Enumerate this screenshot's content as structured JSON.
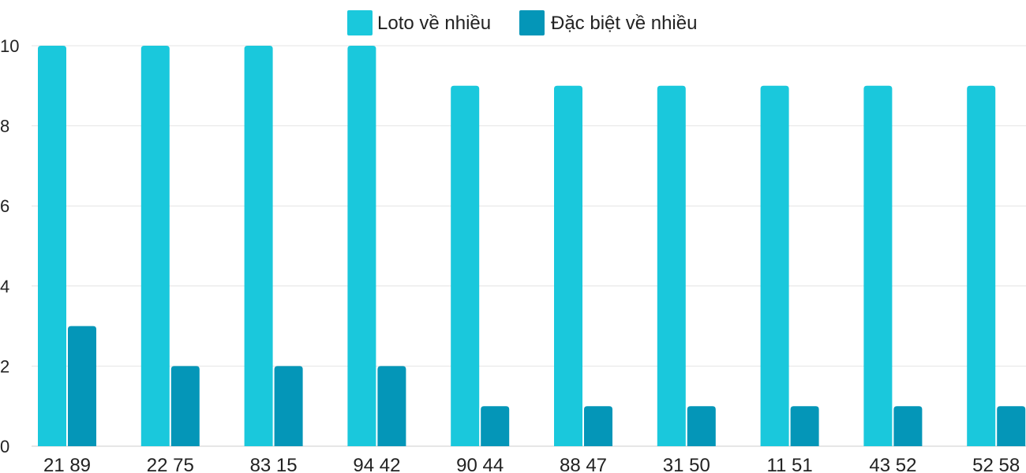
{
  "chart_data": {
    "type": "bar",
    "categories": [
      "21 89",
      "22 75",
      "83 15",
      "94 42",
      "90 44",
      "88 47",
      "31 50",
      "11 51",
      "43 52",
      "52 58"
    ],
    "series": [
      {
        "name": "Loto về nhiều",
        "color": "#1ac8dc",
        "values": [
          10,
          10,
          10,
          10,
          9,
          9,
          9,
          9,
          9,
          9
        ]
      },
      {
        "name": "Đặc biệt về nhiều",
        "color": "#0496b8",
        "values": [
          3,
          2,
          2,
          2,
          1,
          1,
          1,
          1,
          1,
          1
        ]
      }
    ],
    "y_ticks": [
      "0",
      "2",
      "4",
      "6",
      "8",
      "10"
    ],
    "ylim": [
      0,
      10
    ],
    "grid": true,
    "legend_position": "top-center"
  }
}
